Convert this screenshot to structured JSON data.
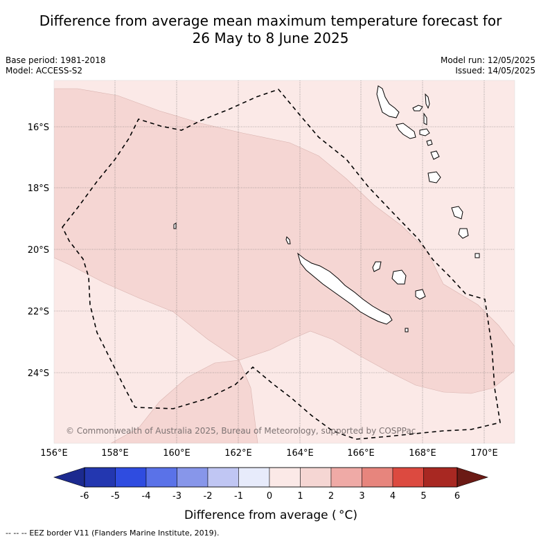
{
  "title": {
    "line1": "Difference from average mean maximum temperature forecast for",
    "line2": "26 May to 8 June 2025"
  },
  "meta": {
    "base_period": "Base period: 1981-2018",
    "model": "Model: ACCESS-S2",
    "model_run": "Model run: 12/05/2025",
    "issued": "Issued: 14/05/2025"
  },
  "map": {
    "lat_labels": [
      "16°S",
      "18°S",
      "20°S",
      "22°S",
      "24°S"
    ],
    "lon_labels": [
      "156°E",
      "158°E",
      "160°E",
      "162°E",
      "164°E",
      "166°E",
      "168°E",
      "170°E"
    ],
    "copyright": "© Commonwealth of Australia 2025, Bureau of Meteorology, supported by COSPPac",
    "colors": {
      "band_0_1": "#fbe9e7",
      "band_1_2": "#f5d6d3",
      "eez_border": "#000000"
    }
  },
  "colorbar": {
    "ticks": [
      "-6",
      "-5",
      "-4",
      "-3",
      "-2",
      "-1",
      "0",
      "1",
      "2",
      "3",
      "4",
      "5",
      "6"
    ],
    "colors": [
      "#1c2a8f",
      "#2337b0",
      "#2f4ce0",
      "#5a72e8",
      "#8796ea",
      "#c0c6f3",
      "#e7ebfb",
      "#fbe9e7",
      "#f5d6d3",
      "#efaaa6",
      "#e7857d",
      "#dc4a40",
      "#a82822",
      "#6b1a15"
    ],
    "label": "Difference from average ( °C)"
  },
  "footer": {
    "legend_symbol": "-- -- --",
    "legend_text": "EEZ border V11 (Flanders Marine Institute, 2019)."
  }
}
